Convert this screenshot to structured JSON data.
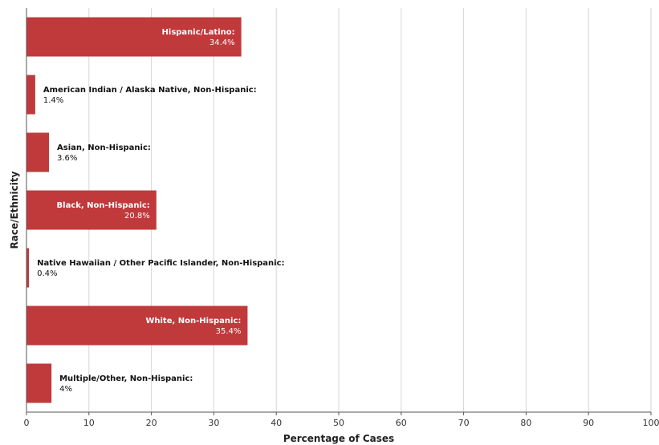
{
  "chart_data": {
    "type": "bar",
    "orientation": "horizontal",
    "title": "",
    "xlabel": "Percentage of Cases",
    "ylabel": "Race/Ethnicity",
    "xlim": [
      0,
      100
    ],
    "x_ticks": [
      "0",
      "10",
      "20",
      "30",
      "40",
      "50",
      "60",
      "70",
      "80",
      "90",
      "100"
    ],
    "grid": "vertical",
    "bar_color": "#c0393b",
    "categories": [
      "Hispanic/Latino:",
      "American Indian / Alaska Native, Non-Hispanic:",
      "Asian, Non-Hispanic:",
      "Black, Non-Hispanic:",
      "Native Hawaiian / Other Pacific Islander, Non-Hispanic:",
      "White, Non-Hispanic:",
      "Multiple/Other, Non-Hispanic:"
    ],
    "values": [
      34.4,
      1.4,
      3.6,
      20.8,
      0.4,
      35.4,
      4
    ],
    "data_labels": [
      "34.4%",
      "1.4%",
      "3.6%",
      "20.8%",
      "0.4%",
      "35.4%",
      "4%"
    ],
    "label_inside": [
      true,
      false,
      false,
      true,
      false,
      true,
      false
    ]
  }
}
